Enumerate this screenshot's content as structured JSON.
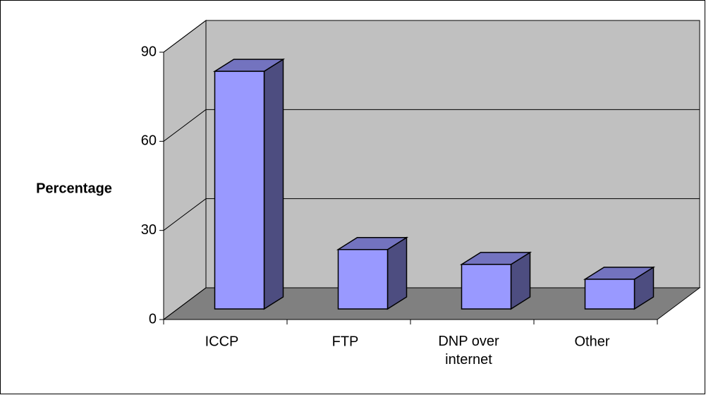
{
  "chart_data": {
    "type": "bar3d",
    "categories": [
      "ICCP",
      "FTP",
      "DNP over internet",
      "Other"
    ],
    "values": [
      80,
      20,
      15,
      10
    ],
    "ylabel": "Percentage",
    "ylim": [
      0,
      90
    ],
    "yticks": [
      0,
      30,
      60,
      90
    ],
    "grid": true,
    "color": "#9999ff"
  }
}
